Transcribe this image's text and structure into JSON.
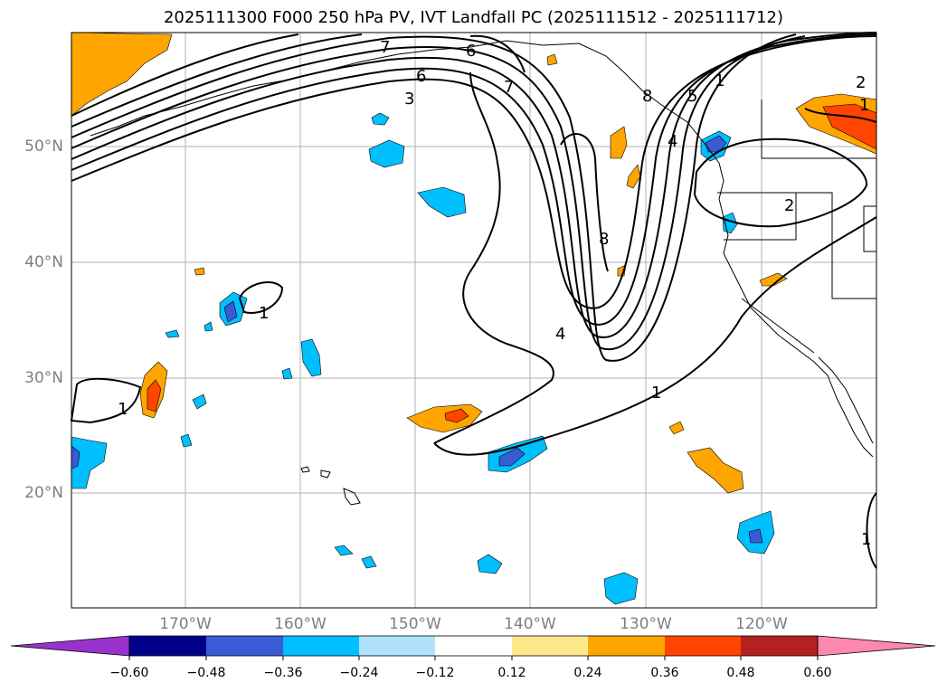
{
  "title": "2025111300 F000 250 hPa PV, IVT Landfall PC (2025111512 - 2025111712)",
  "latitudes": [
    "50°N",
    "40°N",
    "30°N",
    "20°N"
  ],
  "longitudes": [
    "170°W",
    "160°W",
    "150°W",
    "140°W",
    "130°W",
    "120°W"
  ],
  "contour_labels": [
    "7",
    "6",
    "3",
    "6",
    "7",
    "8",
    "5",
    "4",
    "1",
    "2",
    "1",
    "2",
    "8",
    "4",
    "1",
    "1",
    "1",
    "1"
  ],
  "colorbar": {
    "ticks": [
      "−0.60",
      "−0.48",
      "−0.36",
      "−0.24",
      "−0.12",
      "0.12",
      "0.24",
      "0.36",
      "0.48",
      "0.60"
    ],
    "colors": [
      "#9932cc",
      "#00008b",
      "#3a5bd6",
      "#00bfff",
      "#aee3fb",
      "#ffffff",
      "#fde98c",
      "#ffa500",
      "#ff4500",
      "#b22222",
      "#ff88b0"
    ]
  }
}
